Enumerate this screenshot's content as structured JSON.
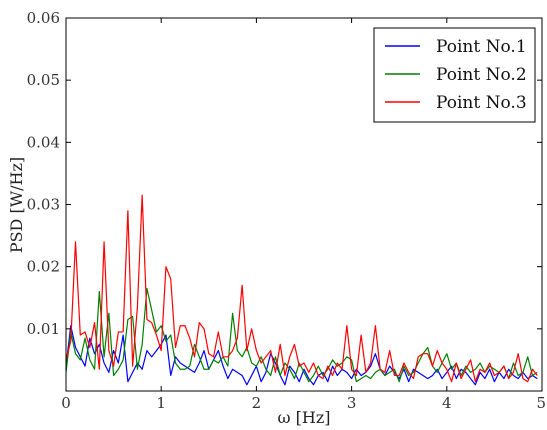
{
  "chart_data": {
    "type": "line",
    "title": "",
    "xlabel": "ω [Hz]",
    "ylabel": "PSD  [W/Hz]",
    "xlim": [
      0,
      5
    ],
    "ylim": [
      0,
      0.06
    ],
    "xticks": [
      0,
      1,
      2,
      3,
      4,
      5
    ],
    "yticks": [
      0.01,
      0.02,
      0.03,
      0.04,
      0.05,
      0.06
    ],
    "xtick_labels": [
      "0",
      "1",
      "2",
      "3",
      "4",
      "5"
    ],
    "ytick_labels": [
      "0.01",
      "0.02",
      "0.03",
      "0.04",
      "0.05",
      "0.06"
    ],
    "grid": false,
    "legend_position": "top-right",
    "series": [
      {
        "name": "Point No.1",
        "color": "#0000ff",
        "x": [
          0.0,
          0.05,
          0.1,
          0.15,
          0.2,
          0.25,
          0.3,
          0.35,
          0.4,
          0.45,
          0.5,
          0.55,
          0.6,
          0.65,
          0.7,
          0.75,
          0.8,
          0.85,
          0.9,
          0.95,
          1.0,
          1.05,
          1.1,
          1.15,
          1.2,
          1.25,
          1.3,
          1.35,
          1.4,
          1.45,
          1.5,
          1.55,
          1.6,
          1.65,
          1.7,
          1.75,
          1.8,
          1.85,
          1.9,
          1.95,
          2.0,
          2.05,
          2.1,
          2.15,
          2.2,
          2.25,
          2.3,
          2.35,
          2.4,
          2.45,
          2.5,
          2.55,
          2.6,
          2.65,
          2.7,
          2.75,
          2.8,
          2.85,
          2.9,
          2.95,
          3.0,
          3.05,
          3.1,
          3.15,
          3.2,
          3.25,
          3.3,
          3.35,
          3.4,
          3.45,
          3.5,
          3.55,
          3.6,
          3.65,
          3.7,
          3.75,
          3.8,
          3.85,
          3.9,
          3.95,
          4.0,
          4.05,
          4.1,
          4.15,
          4.2,
          4.25,
          4.3,
          4.35,
          4.4,
          4.45,
          4.5,
          4.55,
          4.6,
          4.65,
          4.7,
          4.75,
          4.8,
          4.85,
          4.9,
          4.95
        ],
        "values": [
          0.004,
          0.0105,
          0.007,
          0.0055,
          0.004,
          0.0085,
          0.006,
          0.0075,
          0.0045,
          0.003,
          0.0065,
          0.0045,
          0.009,
          0.0015,
          0.003,
          0.0045,
          0.0035,
          0.0065,
          0.0055,
          0.0065,
          0.0075,
          0.009,
          0.0025,
          0.0055,
          0.0045,
          0.004,
          0.0035,
          0.003,
          0.0045,
          0.0065,
          0.0035,
          0.005,
          0.0065,
          0.004,
          0.002,
          0.0035,
          0.003,
          0.0025,
          0.001,
          0.0025,
          0.004,
          0.0015,
          0.003,
          0.006,
          0.0045,
          0.0025,
          0.001,
          0.004,
          0.003,
          0.0015,
          0.0035,
          0.002,
          0.001,
          0.0025,
          0.003,
          0.0015,
          0.004,
          0.0025,
          0.0035,
          0.003,
          0.002,
          0.0035,
          0.0025,
          0.003,
          0.004,
          0.006,
          0.0035,
          0.0025,
          0.004,
          0.003,
          0.002,
          0.0035,
          0.0015,
          0.0035,
          0.003,
          0.0025,
          0.002,
          0.0025,
          0.0035,
          0.002,
          0.003,
          0.004,
          0.002,
          0.0035,
          0.003,
          0.002,
          0.001,
          0.003,
          0.002,
          0.0035,
          0.0015,
          0.003,
          0.002,
          0.0035,
          0.0025,
          0.002,
          0.003,
          0.002,
          0.0025,
          0.002
        ]
      },
      {
        "name": "Point No.2",
        "color": "#008000",
        "x": [
          0.0,
          0.05,
          0.1,
          0.15,
          0.2,
          0.25,
          0.3,
          0.35,
          0.4,
          0.45,
          0.5,
          0.55,
          0.6,
          0.65,
          0.7,
          0.75,
          0.8,
          0.85,
          0.9,
          0.95,
          1.0,
          1.05,
          1.1,
          1.15,
          1.2,
          1.25,
          1.3,
          1.35,
          1.4,
          1.45,
          1.5,
          1.55,
          1.6,
          1.65,
          1.7,
          1.75,
          1.8,
          1.85,
          1.9,
          1.95,
          2.0,
          2.05,
          2.1,
          2.15,
          2.2,
          2.25,
          2.3,
          2.35,
          2.4,
          2.45,
          2.5,
          2.55,
          2.6,
          2.65,
          2.7,
          2.75,
          2.8,
          2.85,
          2.9,
          2.95,
          3.0,
          3.05,
          3.1,
          3.15,
          3.2,
          3.25,
          3.3,
          3.35,
          3.4,
          3.45,
          3.5,
          3.55,
          3.6,
          3.65,
          3.7,
          3.75,
          3.8,
          3.85,
          3.9,
          3.95,
          4.0,
          4.05,
          4.1,
          4.15,
          4.2,
          4.25,
          4.3,
          4.35,
          4.4,
          4.45,
          4.5,
          4.55,
          4.6,
          4.65,
          4.7,
          4.75,
          4.8,
          4.85,
          4.9,
          4.95
        ],
        "values": [
          0.003,
          0.0095,
          0.006,
          0.005,
          0.0085,
          0.005,
          0.0035,
          0.016,
          0.0055,
          0.0125,
          0.0025,
          0.0035,
          0.005,
          0.0115,
          0.012,
          0.0035,
          0.0075,
          0.0165,
          0.013,
          0.0095,
          0.0105,
          0.008,
          0.009,
          0.0045,
          0.0035,
          0.0035,
          0.004,
          0.0075,
          0.0055,
          0.0035,
          0.0035,
          0.005,
          0.0045,
          0.0055,
          0.004,
          0.0125,
          0.0065,
          0.0055,
          0.007,
          0.0045,
          0.004,
          0.0055,
          0.0035,
          0.0025,
          0.0055,
          0.0025,
          0.0045,
          0.0035,
          0.002,
          0.0045,
          0.003,
          0.0015,
          0.0025,
          0.004,
          0.0025,
          0.0035,
          0.005,
          0.004,
          0.0045,
          0.0055,
          0.005,
          0.0015,
          0.002,
          0.0025,
          0.002,
          0.003,
          0.0035,
          0.0025,
          0.003,
          0.0035,
          0.0015,
          0.004,
          0.0025,
          0.003,
          0.0045,
          0.006,
          0.007,
          0.004,
          0.003,
          0.0045,
          0.006,
          0.0035,
          0.0045,
          0.0025,
          0.004,
          0.003,
          0.0035,
          0.0045,
          0.003,
          0.004,
          0.0035,
          0.003,
          0.004,
          0.002,
          0.0045,
          0.0025,
          0.003,
          0.0055,
          0.0025,
          0.003
        ]
      },
      {
        "name": "Point No.3",
        "color": "#ff0000",
        "x": [
          0.0,
          0.05,
          0.1,
          0.15,
          0.2,
          0.25,
          0.3,
          0.35,
          0.4,
          0.45,
          0.5,
          0.55,
          0.6,
          0.65,
          0.7,
          0.75,
          0.8,
          0.85,
          0.9,
          0.95,
          1.0,
          1.05,
          1.1,
          1.15,
          1.2,
          1.25,
          1.3,
          1.35,
          1.4,
          1.45,
          1.5,
          1.55,
          1.6,
          1.65,
          1.7,
          1.75,
          1.8,
          1.85,
          1.9,
          1.95,
          2.0,
          2.05,
          2.1,
          2.15,
          2.2,
          2.25,
          2.3,
          2.35,
          2.4,
          2.45,
          2.5,
          2.55,
          2.6,
          2.65,
          2.7,
          2.75,
          2.8,
          2.85,
          2.9,
          2.95,
          3.0,
          3.05,
          3.1,
          3.15,
          3.2,
          3.25,
          3.3,
          3.35,
          3.4,
          3.45,
          3.5,
          3.55,
          3.6,
          3.65,
          3.7,
          3.75,
          3.8,
          3.85,
          3.9,
          3.95,
          4.0,
          4.05,
          4.1,
          4.15,
          4.2,
          4.25,
          4.3,
          4.35,
          4.4,
          4.45,
          4.5,
          4.55,
          4.6,
          4.65,
          4.7,
          4.75,
          4.8,
          4.85,
          4.9,
          4.95
        ],
        "values": [
          0.005,
          0.008,
          0.024,
          0.009,
          0.0095,
          0.007,
          0.011,
          0.0035,
          0.024,
          0.0065,
          0.004,
          0.0095,
          0.0095,
          0.029,
          0.004,
          0.0135,
          0.0315,
          0.0115,
          0.011,
          0.009,
          0.0065,
          0.02,
          0.018,
          0.007,
          0.0105,
          0.0105,
          0.0085,
          0.0055,
          0.011,
          0.01,
          0.006,
          0.0055,
          0.0095,
          0.0055,
          0.0055,
          0.0065,
          0.0085,
          0.017,
          0.0065,
          0.01,
          0.0065,
          0.0045,
          0.0055,
          0.0065,
          0.003,
          0.0075,
          0.0025,
          0.0055,
          0.0075,
          0.004,
          0.0045,
          0.003,
          0.0045,
          0.0025,
          0.002,
          0.004,
          0.0025,
          0.0045,
          0.0035,
          0.0105,
          0.0035,
          0.0025,
          0.009,
          0.003,
          0.0045,
          0.0105,
          0.0035,
          0.003,
          0.0065,
          0.0025,
          0.0025,
          0.0045,
          0.003,
          0.002,
          0.0055,
          0.006,
          0.006,
          0.004,
          0.0065,
          0.0045,
          0.0035,
          0.0015,
          0.0045,
          0.002,
          0.0035,
          0.005,
          0.0015,
          0.0035,
          0.003,
          0.0045,
          0.0025,
          0.003,
          0.004,
          0.002,
          0.003,
          0.006,
          0.002,
          0.0015,
          0.0035,
          0.0025
        ]
      }
    ]
  }
}
